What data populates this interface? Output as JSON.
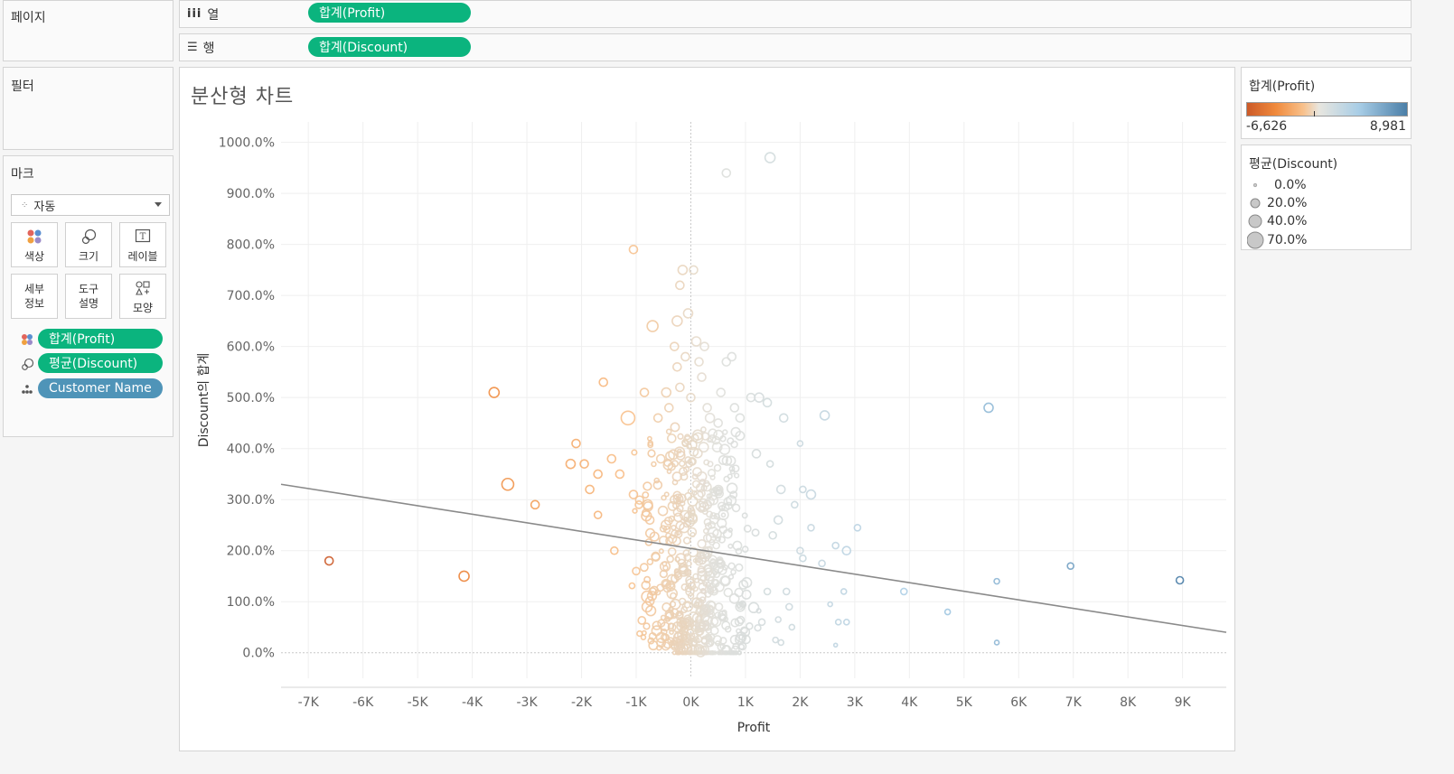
{
  "shelves": {
    "pages_label": "페이지",
    "columns_label": "열",
    "rows_label": "행",
    "columns_pill": "합계(Profit)",
    "rows_pill": "합계(Discount)"
  },
  "filters": {
    "title": "필터"
  },
  "marks": {
    "title": "마크",
    "type": "자동",
    "buttons": [
      {
        "label": "색상",
        "icon": "color-dots-icon"
      },
      {
        "label": "크기",
        "icon": "size-icon"
      },
      {
        "label": "레이블",
        "icon": "label-icon"
      },
      {
        "label1": "세부",
        "label2": "정보",
        "icon": "detail-icon"
      },
      {
        "label1": "도구",
        "label2": "설명",
        "icon": "tooltip-icon"
      },
      {
        "label": "모양",
        "icon": "shape-icon"
      }
    ],
    "fields": [
      {
        "label": "합계(Profit)",
        "icon": "color-dots-icon"
      },
      {
        "label": "평균(Discount)",
        "icon": "size-icon"
      },
      {
        "label": "Customer Name",
        "icon": "detail-icon"
      }
    ]
  },
  "color_legend": {
    "title": "합계(Profit)",
    "min_label": "-6,626",
    "max_label": "8,981",
    "colors": {
      "low": "#cc5a28",
      "mid_low": "#f8b56a",
      "mid": "#e8e6df",
      "mid_high": "#a8cde6",
      "high": "#4b7fa8"
    }
  },
  "size_legend": {
    "title": "평균(Discount)",
    "items": [
      "0.0%",
      "20.0%",
      "40.0%",
      "70.0%"
    ]
  },
  "chart_data": {
    "type": "scatter",
    "title": "분산형 차트",
    "xlabel": "Profit",
    "ylabel": "Discount의 합계",
    "xlim": [
      -7500,
      9800
    ],
    "ylim": [
      -50,
      1040
    ],
    "x_ticks": [
      "-7K",
      "-6K",
      "-5K",
      "-4K",
      "-3K",
      "-2K",
      "-1K",
      "0K",
      "1K",
      "2K",
      "3K",
      "4K",
      "5K",
      "6K",
      "7K",
      "8K",
      "9K"
    ],
    "y_ticks": [
      "0.0%",
      "100.0%",
      "200.0%",
      "300.0%",
      "400.0%",
      "500.0%",
      "600.0%",
      "700.0%",
      "800.0%",
      "900.0%",
      "1000.0%"
    ],
    "trend_line": {
      "start": [
        -7500,
        330
      ],
      "end": [
        9800,
        40
      ]
    },
    "points": [
      {
        "x": -6620,
        "y": 180,
        "d": 0.3
      },
      {
        "x": -4150,
        "y": 150,
        "d": 0.4
      },
      {
        "x": -3600,
        "y": 510,
        "d": 0.4
      },
      {
        "x": -3350,
        "y": 330,
        "d": 0.5
      },
      {
        "x": -2850,
        "y": 290,
        "d": 0.3
      },
      {
        "x": -2100,
        "y": 410,
        "d": 0.3
      },
      {
        "x": -2200,
        "y": 370,
        "d": 0.35
      },
      {
        "x": -1950,
        "y": 370,
        "d": 0.3
      },
      {
        "x": -1850,
        "y": 320,
        "d": 0.3
      },
      {
        "x": -1700,
        "y": 350,
        "d": 0.3
      },
      {
        "x": -1700,
        "y": 270,
        "d": 0.25
      },
      {
        "x": -1600,
        "y": 530,
        "d": 0.3
      },
      {
        "x": -1450,
        "y": 380,
        "d": 0.3
      },
      {
        "x": -1400,
        "y": 200,
        "d": 0.25
      },
      {
        "x": -1300,
        "y": 350,
        "d": 0.3
      },
      {
        "x": -1150,
        "y": 460,
        "d": 0.6
      },
      {
        "x": -1050,
        "y": 790,
        "d": 0.3
      },
      {
        "x": -1050,
        "y": 310,
        "d": 0.3
      },
      {
        "x": -1000,
        "y": 160,
        "d": 0.25
      },
      {
        "x": -950,
        "y": 290,
        "d": 0.25
      },
      {
        "x": -850,
        "y": 510,
        "d": 0.3
      },
      {
        "x": -800,
        "y": 110,
        "d": 0.45
      },
      {
        "x": -800,
        "y": 90,
        "d": 0.4
      },
      {
        "x": -700,
        "y": 640,
        "d": 0.45
      },
      {
        "x": -750,
        "y": 260,
        "d": 0.3
      },
      {
        "x": -700,
        "y": 120,
        "d": 0.25
      },
      {
        "x": -600,
        "y": 460,
        "d": 0.3
      },
      {
        "x": -550,
        "y": 380,
        "d": 0.3
      },
      {
        "x": -500,
        "y": 220,
        "d": 0.3
      },
      {
        "x": -450,
        "y": 510,
        "d": 0.35
      },
      {
        "x": -400,
        "y": 480,
        "d": 0.3
      },
      {
        "x": -350,
        "y": 420,
        "d": 0.3
      },
      {
        "x": -300,
        "y": 300,
        "d": 0.3
      },
      {
        "x": -250,
        "y": 650,
        "d": 0.4
      },
      {
        "x": -300,
        "y": 600,
        "d": 0.3
      },
      {
        "x": -250,
        "y": 560,
        "d": 0.3
      },
      {
        "x": -200,
        "y": 720,
        "d": 0.3
      },
      {
        "x": -200,
        "y": 520,
        "d": 0.3
      },
      {
        "x": -150,
        "y": 750,
        "d": 0.35
      },
      {
        "x": -100,
        "y": 580,
        "d": 0.3
      },
      {
        "x": -50,
        "y": 665,
        "d": 0.35
      },
      {
        "x": 0,
        "y": 500,
        "d": 0.3
      },
      {
        "x": 50,
        "y": 750,
        "d": 0.3
      },
      {
        "x": 100,
        "y": 610,
        "d": 0.35
      },
      {
        "x": 150,
        "y": 570,
        "d": 0.3
      },
      {
        "x": 200,
        "y": 540,
        "d": 0.3
      },
      {
        "x": 250,
        "y": 600,
        "d": 0.3
      },
      {
        "x": 300,
        "y": 480,
        "d": 0.3
      },
      {
        "x": 350,
        "y": 460,
        "d": 0.35
      },
      {
        "x": 400,
        "y": 430,
        "d": 0.3
      },
      {
        "x": 500,
        "y": 450,
        "d": 0.3
      },
      {
        "x": 550,
        "y": 510,
        "d": 0.3
      },
      {
        "x": 650,
        "y": 940,
        "d": 0.3
      },
      {
        "x": 650,
        "y": 570,
        "d": 0.3
      },
      {
        "x": 750,
        "y": 580,
        "d": 0.3
      },
      {
        "x": 800,
        "y": 480,
        "d": 0.3
      },
      {
        "x": 900,
        "y": 460,
        "d": 0.3
      },
      {
        "x": 1100,
        "y": 500,
        "d": 0.3
      },
      {
        "x": 1250,
        "y": 500,
        "d": 0.35
      },
      {
        "x": 1400,
        "y": 490,
        "d": 0.3
      },
      {
        "x": 1450,
        "y": 970,
        "d": 0.4
      },
      {
        "x": 1700,
        "y": 460,
        "d": 0.3
      },
      {
        "x": 2000,
        "y": 410,
        "d": 0.15
      },
      {
        "x": 2450,
        "y": 465,
        "d": 0.35
      },
      {
        "x": 5450,
        "y": 480,
        "d": 0.35
      },
      {
        "x": 1200,
        "y": 390,
        "d": 0.3
      },
      {
        "x": 1450,
        "y": 370,
        "d": 0.2
      },
      {
        "x": 1650,
        "y": 320,
        "d": 0.3
      },
      {
        "x": 1900,
        "y": 290,
        "d": 0.2
      },
      {
        "x": 2050,
        "y": 320,
        "d": 0.2
      },
      {
        "x": 2200,
        "y": 310,
        "d": 0.35
      },
      {
        "x": 2200,
        "y": 245,
        "d": 0.2
      },
      {
        "x": 1600,
        "y": 260,
        "d": 0.3
      },
      {
        "x": 1500,
        "y": 230,
        "d": 0.25
      },
      {
        "x": 2000,
        "y": 200,
        "d": 0.2
      },
      {
        "x": 2650,
        "y": 210,
        "d": 0.2
      },
      {
        "x": 2850,
        "y": 200,
        "d": 0.3
      },
      {
        "x": 3050,
        "y": 245,
        "d": 0.2
      },
      {
        "x": 2050,
        "y": 185,
        "d": 0.2
      },
      {
        "x": 2400,
        "y": 175,
        "d": 0.2
      },
      {
        "x": 2800,
        "y": 120,
        "d": 0.15
      },
      {
        "x": 2700,
        "y": 60,
        "d": 0.15
      },
      {
        "x": 2850,
        "y": 60,
        "d": 0.15
      },
      {
        "x": 2550,
        "y": 95,
        "d": 0.1
      },
      {
        "x": 3900,
        "y": 120,
        "d": 0.2
      },
      {
        "x": 4700,
        "y": 80,
        "d": 0.15
      },
      {
        "x": 5600,
        "y": 140,
        "d": 0.15
      },
      {
        "x": 5600,
        "y": 20,
        "d": 0.1
      },
      {
        "x": 6950,
        "y": 170,
        "d": 0.2
      },
      {
        "x": 8950,
        "y": 142,
        "d": 0.25
      },
      {
        "x": 2650,
        "y": 15,
        "d": 0.05
      },
      {
        "x": 1300,
        "y": 60,
        "d": 0.2
      },
      {
        "x": 1600,
        "y": 65,
        "d": 0.15
      },
      {
        "x": 1800,
        "y": 90,
        "d": 0.2
      },
      {
        "x": 1400,
        "y": 120,
        "d": 0.2
      },
      {
        "x": 1750,
        "y": 120,
        "d": 0.2
      },
      {
        "x": 1850,
        "y": 50,
        "d": 0.15
      },
      {
        "x": 1550,
        "y": 25,
        "d": 0.15
      },
      {
        "x": 1650,
        "y": 20,
        "d": 0.15
      }
    ]
  }
}
